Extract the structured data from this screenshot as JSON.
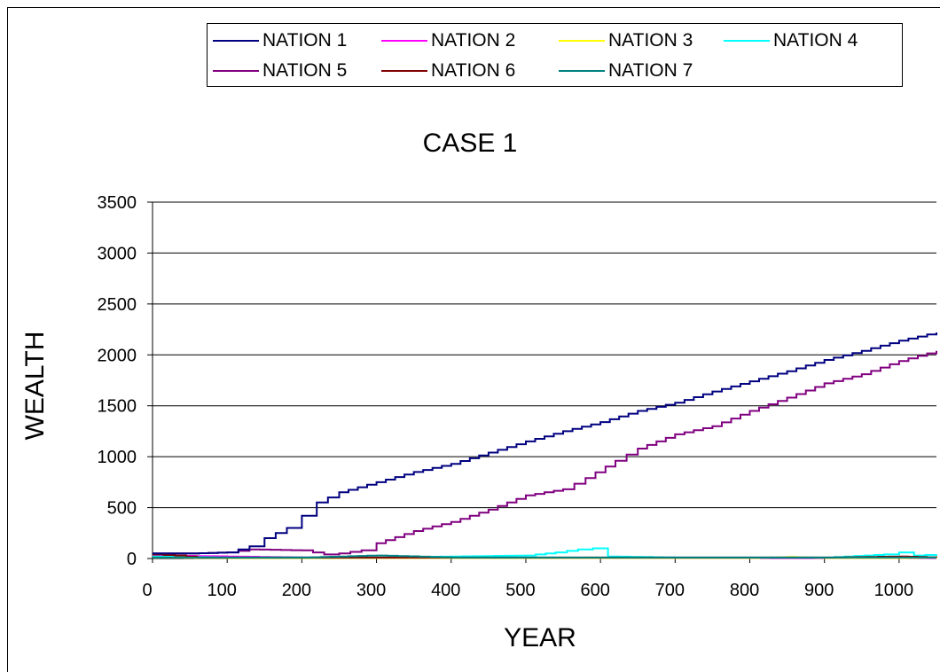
{
  "chart_data": {
    "type": "line",
    "title": "CASE 1",
    "xlabel": "YEAR",
    "ylabel": "WEALTH",
    "xlim": [
      0,
      1050
    ],
    "ylim": [
      0,
      3500
    ],
    "xticks": [
      "0",
      "100",
      "200",
      "300",
      "400",
      "500",
      "600",
      "700",
      "800",
      "900",
      "1000"
    ],
    "yticks": [
      "0",
      "500",
      "1000",
      "1500",
      "2000",
      "2500",
      "3000",
      "3500"
    ],
    "grid": "horizontal",
    "legend_position": "top",
    "series": [
      {
        "name": "NATION 1",
        "color": "#000080",
        "x": [
          0,
          50,
          100,
          130,
          150,
          180,
          200,
          220,
          250,
          300,
          350,
          400,
          450,
          500,
          550,
          600,
          650,
          700,
          750,
          800,
          850,
          900,
          950,
          1000,
          1050
        ],
        "y": [
          50,
          50,
          60,
          120,
          200,
          300,
          420,
          550,
          650,
          750,
          850,
          930,
          1040,
          1150,
          1250,
          1340,
          1450,
          1530,
          1640,
          1740,
          1840,
          1950,
          2040,
          2140,
          2220
        ]
      },
      {
        "name": "NATION 2",
        "color": "#ff00ff",
        "x": [
          0,
          100,
          200,
          300,
          400,
          500,
          600,
          700,
          800,
          900,
          1000,
          1050
        ],
        "y": [
          30,
          20,
          10,
          5,
          5,
          5,
          5,
          5,
          5,
          5,
          5,
          5
        ]
      },
      {
        "name": "NATION 3",
        "color": "#ffff00",
        "x": [
          0,
          100,
          200,
          300,
          400,
          500,
          600,
          700,
          800,
          850,
          900,
          1000,
          1050
        ],
        "y": [
          10,
          5,
          5,
          5,
          5,
          5,
          5,
          5,
          5,
          15,
          5,
          5,
          10
        ]
      },
      {
        "name": "NATION 4",
        "color": "#00ffff",
        "x": [
          0,
          100,
          200,
          300,
          400,
          500,
          540,
          570,
          590,
          610,
          700,
          800,
          900,
          980,
          1000,
          1020,
          1050
        ],
        "y": [
          20,
          10,
          10,
          10,
          20,
          30,
          60,
          90,
          100,
          20,
          10,
          10,
          10,
          40,
          60,
          30,
          40
        ]
      },
      {
        "name": "NATION 5",
        "color": "#800080",
        "x": [
          0,
          50,
          100,
          130,
          200,
          230,
          250,
          280,
          300,
          350,
          400,
          450,
          500,
          550,
          580,
          620,
          650,
          700,
          750,
          800,
          850,
          900,
          950,
          1000,
          1050
        ],
        "y": [
          50,
          50,
          60,
          90,
          80,
          40,
          50,
          80,
          150,
          270,
          360,
          480,
          620,
          680,
          790,
          960,
          1080,
          1220,
          1300,
          1450,
          1580,
          1720,
          1810,
          1940,
          2040
        ]
      },
      {
        "name": "NATION 6",
        "color": "#800000",
        "x": [
          0,
          30,
          60,
          100,
          200,
          300,
          400,
          500,
          600,
          700,
          800,
          900,
          1000,
          1050
        ],
        "y": [
          40,
          30,
          10,
          10,
          10,
          10,
          10,
          10,
          10,
          10,
          10,
          10,
          20,
          10
        ]
      },
      {
        "name": "NATION 7",
        "color": "#008080",
        "x": [
          0,
          100,
          200,
          250,
          300,
          400,
          500,
          600,
          700,
          800,
          900,
          1000,
          1050
        ],
        "y": [
          10,
          10,
          10,
          20,
          30,
          10,
          10,
          10,
          10,
          10,
          10,
          10,
          10
        ]
      }
    ]
  }
}
